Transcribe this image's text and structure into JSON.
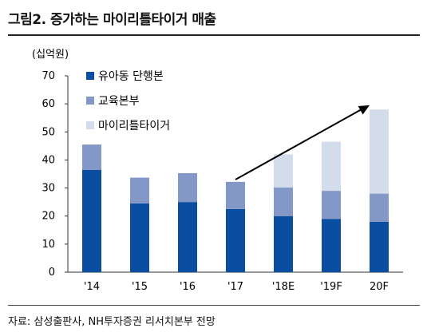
{
  "header": {
    "title": "그림2. 증가하는 마이리틀타이거 매출"
  },
  "footer": {
    "source": "자료: 삼성출판사, NH투자증권 리서치본부 전망"
  },
  "chart_data": {
    "type": "bar",
    "stacked": true,
    "unit_label": "(십억원)",
    "categories": [
      "'14",
      "'15",
      "'16",
      "'17",
      "'18E",
      "'19F",
      "20F"
    ],
    "series": [
      {
        "name": "유아동 단행본",
        "color": "#0a4ea1",
        "values": [
          36.5,
          24.5,
          25,
          22.5,
          20,
          19,
          18
        ]
      },
      {
        "name": "교육본부",
        "color": "#8498c8",
        "values": [
          9,
          9.2,
          10.3,
          9.7,
          10.2,
          10,
          10
        ]
      },
      {
        "name": "마이리틀타이거",
        "color": "#d3dcea",
        "values": [
          0,
          0,
          0,
          0,
          11.8,
          17.5,
          30
        ]
      }
    ],
    "ylim": [
      0,
      70
    ],
    "yticks": [
      0,
      10,
      20,
      30,
      40,
      50,
      60,
      70
    ],
    "legend_position": "top-left",
    "annotation": {
      "type": "arrow",
      "from": {
        "category": "'17",
        "value": 33
      },
      "to": {
        "category": "20F",
        "value": 59.5
      }
    }
  }
}
